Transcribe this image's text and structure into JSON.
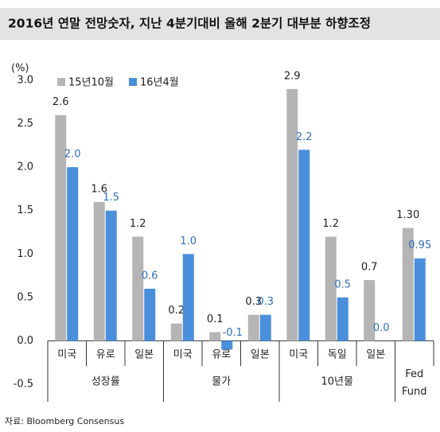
{
  "chart_data": {
    "type": "bar",
    "title": "2016년 연말 전망숫자, 지난 4분기대비 올해 2분기 대부분 하향조정",
    "y_unit": "(%)",
    "categories": [
      "미국",
      "유로",
      "일본",
      "미국",
      "유로",
      "일본",
      "미국",
      "독일",
      "일본",
      "Fed Fund"
    ],
    "groups": [
      "성장률",
      "물가",
      "10년물"
    ],
    "series": [
      {
        "name": "15년10월",
        "color": "#b5b5b5",
        "values": [
          2.6,
          1.6,
          1.2,
          0.2,
          0.1,
          0.3,
          2.9,
          1.2,
          0.7,
          1.3
        ],
        "value_labels": [
          "2.6",
          "1.6",
          "1.2",
          "0.2",
          "0.1",
          "0.3",
          "2.9",
          "1.2",
          "0.7",
          "1.30"
        ],
        "label_color": "#222222"
      },
      {
        "name": "16년4월",
        "color": "#4a8fdc",
        "values": [
          2.0,
          1.5,
          0.6,
          1.0,
          -0.1,
          0.3,
          2.2,
          0.5,
          0.0,
          0.95
        ],
        "value_labels": [
          "2.0",
          "1.5",
          "0.6",
          "1.0",
          "-0.1",
          "0.3",
          "2.2",
          "0.5",
          "0.0",
          "0.95"
        ],
        "label_color": "#2f6fba"
      }
    ],
    "ylim": [
      -0.5,
      3.0
    ],
    "yticks": [
      {
        "value": -0.5,
        "label": "-0.5"
      },
      {
        "value": 0,
        "label": "0.0"
      },
      {
        "value": 0.5,
        "label": "0.5"
      },
      {
        "value": 1,
        "label": "1.0"
      },
      {
        "value": 1.5,
        "label": "1.5"
      },
      {
        "value": 2,
        "label": "2.0"
      },
      {
        "value": 2.5,
        "label": "2.5"
      },
      {
        "value": 3,
        "label": "3.0"
      }
    ],
    "source": "자료: Bloomberg Consensus"
  }
}
